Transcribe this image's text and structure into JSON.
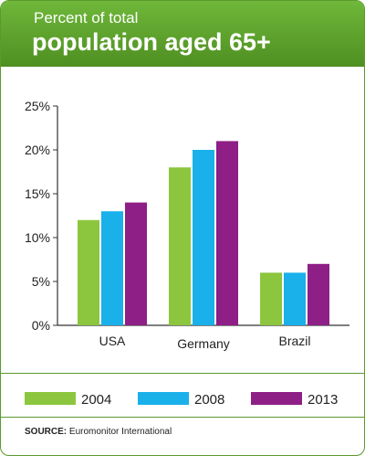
{
  "header": {
    "subtitle": "Percent of total",
    "title": "population aged 65+"
  },
  "source": {
    "label": "SOURCE:",
    "text": "Euromonitor International"
  },
  "colors": {
    "header_green": "#5fa52f",
    "series_2004": "#8cc63f",
    "series_2008": "#1ab0ea",
    "series_2013": "#8e1f86"
  },
  "chart_data": {
    "type": "bar",
    "title": "population aged 65+",
    "subtitle": "Percent of total",
    "categories": [
      "USA",
      "Germany",
      "Brazil"
    ],
    "series": [
      {
        "name": "2004",
        "values": [
          12,
          18,
          6
        ]
      },
      {
        "name": "2008",
        "values": [
          13,
          20,
          6
        ]
      },
      {
        "name": "2013",
        "values": [
          14,
          21,
          7
        ]
      }
    ],
    "yticks": [
      "0%",
      "5%",
      "10%",
      "15%",
      "20%",
      "25%"
    ],
    "ylim": [
      0,
      25
    ],
    "grid": false,
    "legend": "bottom"
  }
}
